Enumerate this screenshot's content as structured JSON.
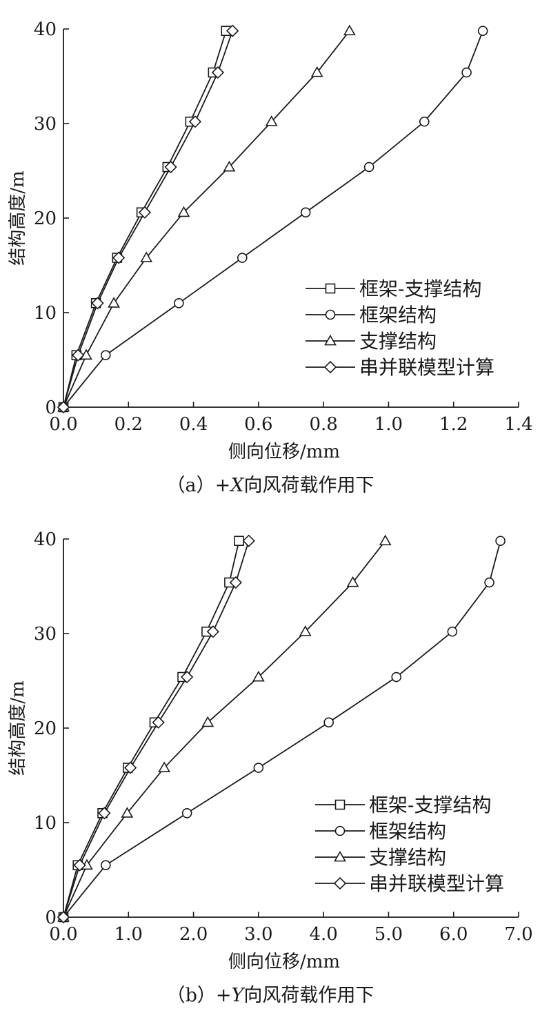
{
  "chart_data": [
    {
      "type": "line",
      "caption_prefix": "（a）+",
      "caption_axis": "X",
      "caption_suffix": "向风荷载作用下",
      "xlabel": "侧向位移/mm",
      "ylabel": "结构高度/m",
      "xlim": [
        0,
        1.4
      ],
      "ylim": [
        0,
        40
      ],
      "xticks": [
        "0.0",
        "0.2",
        "0.4",
        "0.6",
        "0.8",
        "1.0",
        "1.2",
        "1.4"
      ],
      "xtick_values": [
        0,
        0.2,
        0.4,
        0.6,
        0.8,
        1.0,
        1.2,
        1.4
      ],
      "yticks": [
        "0",
        "10",
        "20",
        "30",
        "40"
      ],
      "ytick_values": [
        0,
        10,
        20,
        30,
        40
      ],
      "grid": false,
      "legend_position": "right",
      "series": [
        {
          "name": "框架-支撑结构",
          "marker": "square",
          "x": [
            0,
            0.04,
            0.1,
            0.165,
            0.24,
            0.32,
            0.39,
            0.46,
            0.5
          ],
          "y": [
            0,
            5.5,
            11.0,
            15.8,
            20.6,
            25.4,
            30.2,
            35.4,
            39.8
          ]
        },
        {
          "name": "框架结构",
          "marker": "circle",
          "x": [
            0,
            0.13,
            0.355,
            0.55,
            0.745,
            0.94,
            1.11,
            1.24,
            1.29
          ],
          "y": [
            0,
            5.5,
            11.0,
            15.8,
            20.6,
            25.4,
            30.2,
            35.4,
            39.8
          ]
        },
        {
          "name": "支撑结构",
          "marker": "triangle",
          "x": [
            0,
            0.07,
            0.155,
            0.255,
            0.37,
            0.51,
            0.64,
            0.78,
            0.88
          ],
          "y": [
            0,
            5.5,
            11.0,
            15.8,
            20.6,
            25.4,
            30.2,
            35.4,
            39.8
          ]
        },
        {
          "name": "串并联模型计算",
          "marker": "diamond",
          "x": [
            0,
            0.045,
            0.105,
            0.17,
            0.25,
            0.33,
            0.405,
            0.475,
            0.52
          ],
          "y": [
            0,
            5.5,
            11.0,
            15.8,
            20.6,
            25.4,
            30.2,
            35.4,
            39.8
          ]
        }
      ]
    },
    {
      "type": "line",
      "caption_prefix": "（b）+",
      "caption_axis": "Y",
      "caption_suffix": "向风荷载作用下",
      "xlabel": "侧向位移/mm",
      "ylabel": "结构高度/m",
      "xlim": [
        0,
        7.0
      ],
      "ylim": [
        0,
        40
      ],
      "xticks": [
        "0.0",
        "1.0",
        "2.0",
        "3.0",
        "4.0",
        "5.0",
        "6.0",
        "7.0"
      ],
      "xtick_values": [
        0,
        1,
        2,
        3,
        4,
        5,
        6,
        7
      ],
      "yticks": [
        "0",
        "10",
        "20",
        "30",
        "40"
      ],
      "ytick_values": [
        0,
        10,
        20,
        30,
        40
      ],
      "grid": false,
      "legend_position": "right",
      "series": [
        {
          "name": "框架-支撑结构",
          "marker": "square",
          "x": [
            0,
            0.22,
            0.6,
            0.99,
            1.4,
            1.83,
            2.2,
            2.55,
            2.7
          ],
          "y": [
            0,
            5.5,
            11.0,
            15.8,
            20.6,
            25.4,
            30.2,
            35.4,
            39.8
          ]
        },
        {
          "name": "框架结构",
          "marker": "circle",
          "x": [
            0,
            0.65,
            1.9,
            3.0,
            4.08,
            5.12,
            5.98,
            6.55,
            6.72
          ],
          "y": [
            0,
            5.5,
            11.0,
            15.8,
            20.6,
            25.4,
            30.2,
            35.4,
            39.8
          ]
        },
        {
          "name": "支撑结构",
          "marker": "triangle",
          "x": [
            0,
            0.36,
            0.98,
            1.55,
            2.22,
            3.0,
            3.72,
            4.45,
            4.95
          ],
          "y": [
            0,
            5.5,
            11.0,
            15.8,
            20.6,
            25.4,
            30.2,
            35.4,
            39.8
          ]
        },
        {
          "name": "串并联模型计算",
          "marker": "diamond",
          "x": [
            0,
            0.25,
            0.63,
            1.03,
            1.46,
            1.9,
            2.3,
            2.65,
            2.85
          ],
          "y": [
            0,
            5.5,
            11.0,
            15.8,
            20.6,
            25.4,
            30.2,
            35.4,
            39.8
          ]
        }
      ]
    }
  ]
}
